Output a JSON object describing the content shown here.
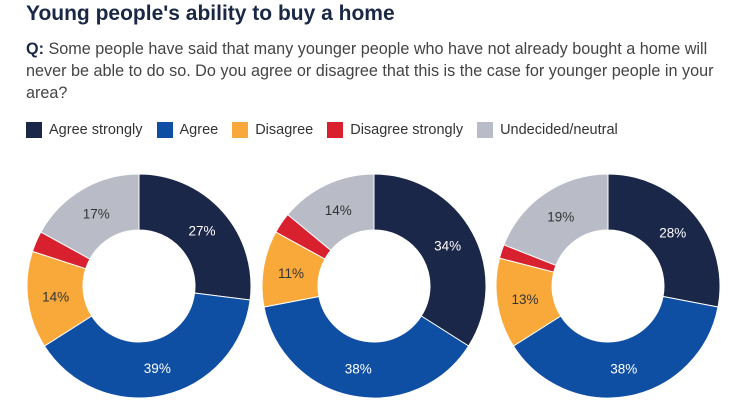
{
  "title": "Young people's ability to buy a home",
  "question": {
    "prefix": "Q:",
    "text": " Some people have said that many younger people who have not already bought a home will never be able to do so. Do you agree or disagree that this is the case for younger people in your area?"
  },
  "legend": [
    {
      "label": "Agree strongly",
      "color": "#1b2748"
    },
    {
      "label": "Agree",
      "color": "#0f4fa3"
    },
    {
      "label": "Disagree",
      "color": "#f8a93a"
    },
    {
      "label": "Disagree strongly",
      "color": "#d8202f"
    },
    {
      "label": "Undecided/neutral",
      "color": "#b9bcc7"
    }
  ],
  "chart_data": [
    {
      "type": "pie",
      "categories": [
        "Agree strongly",
        "Agree",
        "Disagree",
        "Disagree strongly",
        "Undecided/neutral"
      ],
      "values": [
        27,
        39,
        14,
        3,
        17
      ],
      "labels": [
        "27%",
        "39%",
        "14%",
        "",
        "17%"
      ]
    },
    {
      "type": "pie",
      "categories": [
        "Agree strongly",
        "Agree",
        "Disagree",
        "Disagree strongly",
        "Undecided/neutral"
      ],
      "values": [
        34,
        38,
        11,
        3,
        14
      ],
      "labels": [
        "34%",
        "38%",
        "11%",
        "",
        "14%"
      ]
    },
    {
      "type": "pie",
      "categories": [
        "Agree strongly",
        "Agree",
        "Disagree",
        "Disagree strongly",
        "Undecided/neutral"
      ],
      "values": [
        28,
        38,
        13,
        2,
        19
      ],
      "labels": [
        "28%",
        "38%",
        "13%",
        "",
        "19%"
      ]
    }
  ]
}
